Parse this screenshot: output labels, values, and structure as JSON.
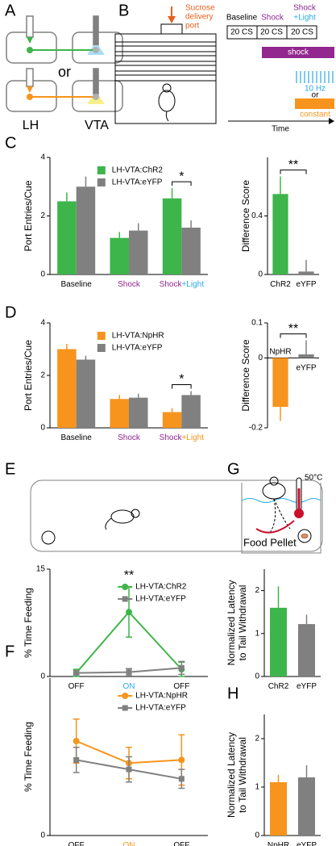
{
  "panel_labels": [
    "A",
    "B",
    "C",
    "D",
    "E",
    "F",
    "G",
    "H"
  ],
  "schematic_a": {
    "or": "or",
    "regions": [
      "LH",
      "VTA"
    ]
  },
  "schematic_b": {
    "port": [
      "Sucrose",
      "delivery",
      "port"
    ],
    "phases": [
      [
        "Baseline"
      ],
      [
        "Shock"
      ],
      [
        "Shock",
        "+Light"
      ]
    ],
    "cs": [
      "20 CS",
      "20 CS",
      "20 CS"
    ],
    "shock": "shock",
    "pulse": "10 Hz",
    "or": "or",
    "constant": "constant",
    "time": "Time"
  },
  "schematic_e": {
    "label": "Food Pellet"
  },
  "schematic_g": {
    "temp": "50°C"
  },
  "chart_data": [
    {
      "type": "bar",
      "ylabel": [
        "Port Entries/Cue"
      ],
      "categories": [
        "Baseline",
        "Shock",
        "Shock+Light"
      ],
      "category_colors": [
        [
          "#000000"
        ],
        [
          "#92278f"
        ],
        [
          "#92278f",
          "#29abe2"
        ]
      ],
      "series": [
        {
          "name": "LH-VTA:ChR2",
          "color": "#3db54a",
          "values": [
            2.5,
            1.25,
            2.6
          ],
          "errors": [
            0.3,
            0.2,
            0.35
          ]
        },
        {
          "name": "LH-VTA:eYFP",
          "color": "#808080",
          "values": [
            3.0,
            1.5,
            1.6
          ],
          "errors": [
            0.35,
            0.25,
            0.25
          ]
        }
      ],
      "ylim": [
        0,
        4
      ],
      "yticks": [
        0,
        2,
        4
      ],
      "legend": "upper center",
      "annotations": [
        {
          "text": "*",
          "category": 2
        }
      ]
    },
    {
      "type": "bar",
      "ylabel": [
        "Difference Score"
      ],
      "categories": [
        "ChR2",
        "eYFP"
      ],
      "category_colors": [
        [
          "#000000"
        ],
        [
          "#000000"
        ]
      ],
      "series": [
        {
          "color": [
            "#3db54a",
            "#808080"
          ],
          "values": [
            0.55,
            0.02
          ],
          "errors": [
            0.12,
            0.08
          ]
        }
      ],
      "ylim": [
        0,
        0.8
      ],
      "yticks": [
        0,
        0.4
      ],
      "annotations": [
        {
          "text": "**"
        }
      ]
    },
    {
      "type": "bar",
      "ylabel": [
        "Port Entries/Cue"
      ],
      "categories": [
        "Baseline",
        "Shock",
        "Shock+Light"
      ],
      "category_colors": [
        [
          "#000000"
        ],
        [
          "#92278f"
        ],
        [
          "#92278f",
          "#f7941d"
        ]
      ],
      "series": [
        {
          "name": "LH-VTA:NpHR",
          "color": "#f7941d",
          "values": [
            3.0,
            1.1,
            0.6
          ],
          "errors": [
            0.2,
            0.15,
            0.15
          ]
        },
        {
          "name": "LH-VTA:eYFP",
          "color": "#808080",
          "values": [
            2.6,
            1.15,
            1.25
          ],
          "errors": [
            0.15,
            0.15,
            0.15
          ]
        }
      ],
      "ylim": [
        0,
        4
      ],
      "yticks": [
        0,
        2,
        4
      ],
      "legend": "upper center",
      "annotations": [
        {
          "text": "*",
          "category": 2
        }
      ]
    },
    {
      "type": "bar",
      "ylabel": [
        "Difference Score"
      ],
      "categories": [
        "NpHR",
        "eYFP"
      ],
      "category_colors": [
        [
          "#000000"
        ],
        [
          "#000000"
        ]
      ],
      "series": [
        {
          "color": [
            "#f7941d",
            "#808080"
          ],
          "values": [
            -0.14,
            0.01
          ],
          "errors": [
            0.04,
            0.04
          ]
        }
      ],
      "ylim": [
        -0.2,
        0.1
      ],
      "yticks": [
        -0.2,
        0,
        0.1
      ],
      "annotations": [
        {
          "text": "**"
        }
      ]
    },
    {
      "type": "line",
      "ylabel": [
        "% Time Feeding"
      ],
      "categories": [
        "OFF",
        "ON",
        "OFF"
      ],
      "category_colors": [
        [
          "#000000"
        ],
        [
          "#29abe2"
        ],
        [
          "#000000"
        ]
      ],
      "series": [
        {
          "name": "LH-VTA:ChR2",
          "color": "#3db54a",
          "marker": "circle",
          "values": [
            0.5,
            9,
            1.0
          ],
          "errors": [
            0.5,
            3.5,
            1.0
          ]
        },
        {
          "name": "LH-VTA:eYFP",
          "color": "#808080",
          "marker": "square",
          "values": [
            0.5,
            0.6,
            1.2
          ],
          "errors": [
            0.3,
            0.5,
            0.9
          ]
        }
      ],
      "ylim": [
        0,
        15
      ],
      "yticks": [
        0,
        15
      ],
      "legend": "upper right",
      "annotations": [
        {
          "text": "**",
          "category": 1
        }
      ]
    },
    {
      "type": "bar",
      "ylabel": [
        "Normalized Latency",
        "to Tail Withdrawal"
      ],
      "categories": [
        "ChR2",
        "eYFP"
      ],
      "category_colors": [
        [
          "#000000"
        ],
        [
          "#000000"
        ]
      ],
      "series": [
        {
          "color": [
            "#3db54a",
            "#808080"
          ],
          "values": [
            1.6,
            1.22
          ],
          "errors": [
            0.5,
            0.22
          ]
        }
      ],
      "ylim": [
        0,
        2.5
      ],
      "yticks": [
        0,
        1,
        2
      ]
    },
    {
      "type": "line",
      "ylabel": [
        "% Time Feeding"
      ],
      "categories": [
        "OFF",
        "ON",
        "OFF"
      ],
      "category_colors": [
        [
          "#000000"
        ],
        [
          "#f7941d"
        ],
        [
          "#000000"
        ]
      ],
      "series": [
        {
          "name": "LH-VTA:NpHR",
          "color": "#f7941d",
          "marker": "circle",
          "values": [
            30,
            23,
            24
          ],
          "errors": [
            7,
            5,
            8
          ]
        },
        {
          "name": "LH-VTA:eYFP",
          "color": "#808080",
          "marker": "square",
          "values": [
            24,
            21,
            18
          ],
          "errors": [
            4,
            4,
            3
          ]
        }
      ],
      "ylim": [
        0,
        50
      ],
      "yticks": [
        0
      ],
      "legend": "upper right"
    },
    {
      "type": "bar",
      "ylabel": [
        "Normalized Latency",
        "to Tail Withdrawal"
      ],
      "categories": [
        "NpHR",
        "eYFP"
      ],
      "category_colors": [
        [
          "#000000"
        ],
        [
          "#000000"
        ]
      ],
      "series": [
        {
          "color": [
            "#f7941d",
            "#808080"
          ],
          "values": [
            1.1,
            1.2
          ],
          "errors": [
            0.15,
            0.25
          ]
        }
      ],
      "ylim": [
        0,
        2.5
      ],
      "yticks": [
        0,
        1,
        2
      ]
    }
  ]
}
